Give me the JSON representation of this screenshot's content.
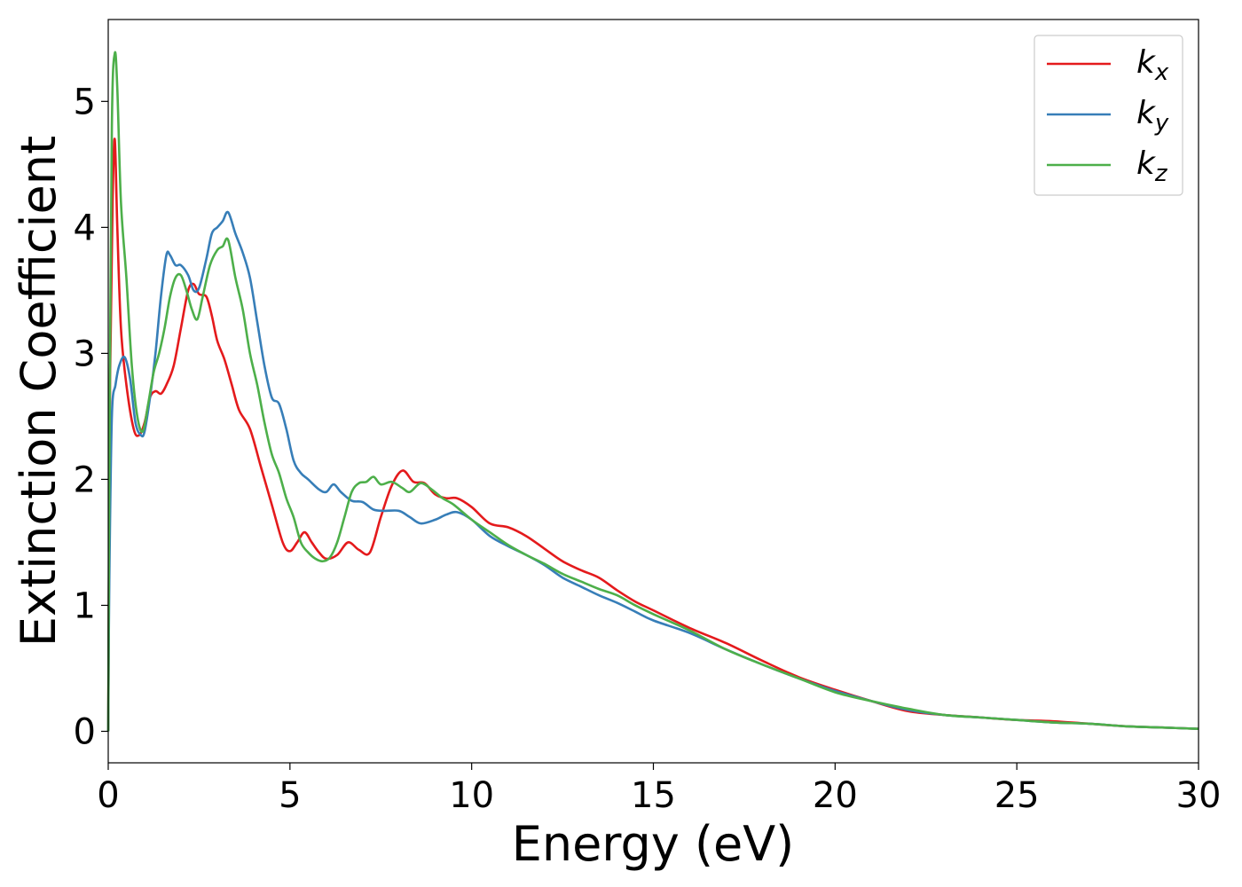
{
  "chart_data": {
    "type": "line",
    "xlabel": "Energy (eV)",
    "ylabel": "Extinction Coefficient",
    "xlim": [
      0,
      30
    ],
    "ylim": [
      -0.25,
      5.65
    ],
    "xticks": [
      0,
      5,
      10,
      15,
      20,
      25,
      30
    ],
    "xtick_labels": [
      "0",
      "5",
      "10",
      "15",
      "20",
      "25",
      "30"
    ],
    "yticks": [
      0,
      1,
      2,
      3,
      4,
      5
    ],
    "ytick_labels": [
      "0",
      "1",
      "2",
      "3",
      "4",
      "5"
    ],
    "grid": false,
    "legend_position": "top-right",
    "series": [
      {
        "name": "k",
        "subscript": "x",
        "color": "#e41a1c",
        "x": [
          0,
          0.05,
          0.12,
          0.18,
          0.25,
          0.35,
          0.5,
          0.7,
          0.85,
          1.0,
          1.15,
          1.3,
          1.45,
          1.6,
          1.8,
          2.0,
          2.2,
          2.35,
          2.5,
          2.7,
          2.85,
          3.0,
          3.2,
          3.4,
          3.6,
          3.9,
          4.2,
          4.5,
          4.8,
          5.0,
          5.2,
          5.4,
          5.6,
          5.8,
          6.0,
          6.3,
          6.6,
          6.9,
          7.2,
          7.5,
          7.8,
          8.1,
          8.4,
          8.7,
          9.0,
          9.3,
          9.6,
          10.0,
          10.5,
          11.0,
          11.5,
          12.0,
          12.5,
          13.0,
          13.5,
          14.0,
          14.5,
          15.0,
          16.0,
          17.0,
          18.0,
          19.0,
          20.0,
          21.0,
          22.0,
          23.0,
          24.0,
          25.0,
          26.0,
          27.0,
          28.0,
          29.0,
          30.0
        ],
        "values": [
          0,
          2.8,
          4.2,
          4.7,
          4.0,
          3.2,
          2.75,
          2.4,
          2.35,
          2.45,
          2.65,
          2.7,
          2.68,
          2.75,
          2.9,
          3.2,
          3.5,
          3.55,
          3.47,
          3.45,
          3.3,
          3.1,
          2.95,
          2.75,
          2.55,
          2.4,
          2.1,
          1.8,
          1.5,
          1.43,
          1.5,
          1.58,
          1.5,
          1.42,
          1.37,
          1.4,
          1.5,
          1.44,
          1.42,
          1.7,
          1.95,
          2.07,
          1.98,
          1.97,
          1.88,
          1.85,
          1.85,
          1.78,
          1.65,
          1.62,
          1.55,
          1.45,
          1.35,
          1.28,
          1.22,
          1.12,
          1.03,
          0.96,
          0.82,
          0.7,
          0.56,
          0.43,
          0.33,
          0.24,
          0.16,
          0.13,
          0.11,
          0.09,
          0.08,
          0.06,
          0.04,
          0.03,
          0.02
        ]
      },
      {
        "name": "k",
        "subscript": "y",
        "color": "#377eb8",
        "x": [
          0,
          0.03,
          0.1,
          0.2,
          0.3,
          0.45,
          0.6,
          0.75,
          0.9,
          1.0,
          1.15,
          1.3,
          1.45,
          1.6,
          1.7,
          1.85,
          2.0,
          2.2,
          2.35,
          2.5,
          2.7,
          2.85,
          3.0,
          3.15,
          3.3,
          3.5,
          3.7,
          3.9,
          4.1,
          4.3,
          4.5,
          4.7,
          4.9,
          5.1,
          5.3,
          5.5,
          5.8,
          6.0,
          6.2,
          6.4,
          6.7,
          7.0,
          7.3,
          7.6,
          8.0,
          8.3,
          8.6,
          9.0,
          9.3,
          9.6,
          10.0,
          10.5,
          11.0,
          11.5,
          12.0,
          12.5,
          13.0,
          13.5,
          14.0,
          14.5,
          15.0,
          16.0,
          17.0,
          18.0,
          19.0,
          20.0,
          21.0,
          22.0,
          23.0,
          24.0,
          25.0,
          26.0,
          27.0,
          28.0,
          29.0,
          30.0
        ],
        "values": [
          0,
          1.2,
          2.5,
          2.75,
          2.9,
          2.97,
          2.8,
          2.45,
          2.35,
          2.38,
          2.65,
          3.0,
          3.45,
          3.78,
          3.78,
          3.7,
          3.7,
          3.62,
          3.5,
          3.52,
          3.75,
          3.95,
          4.0,
          4.05,
          4.12,
          3.95,
          3.8,
          3.6,
          3.25,
          2.9,
          2.65,
          2.6,
          2.4,
          2.15,
          2.05,
          2.0,
          1.92,
          1.9,
          1.96,
          1.9,
          1.83,
          1.82,
          1.76,
          1.75,
          1.75,
          1.7,
          1.65,
          1.68,
          1.72,
          1.74,
          1.68,
          1.55,
          1.47,
          1.4,
          1.32,
          1.22,
          1.15,
          1.08,
          1.02,
          0.95,
          0.88,
          0.78,
          0.65,
          0.53,
          0.42,
          0.32,
          0.24,
          0.17,
          0.13,
          0.11,
          0.09,
          0.07,
          0.06,
          0.04,
          0.03,
          0.02
        ]
      },
      {
        "name": "k",
        "subscript": "z",
        "color": "#4daf4a",
        "x": [
          0,
          0.03,
          0.1,
          0.18,
          0.25,
          0.35,
          0.5,
          0.65,
          0.8,
          0.95,
          1.1,
          1.25,
          1.4,
          1.55,
          1.7,
          1.85,
          2.0,
          2.15,
          2.3,
          2.45,
          2.6,
          2.8,
          3.0,
          3.15,
          3.3,
          3.5,
          3.7,
          3.9,
          4.1,
          4.3,
          4.5,
          4.7,
          4.9,
          5.1,
          5.3,
          5.5,
          5.7,
          5.9,
          6.1,
          6.3,
          6.5,
          6.7,
          6.9,
          7.1,
          7.3,
          7.5,
          7.8,
          8.1,
          8.3,
          8.6,
          8.9,
          9.2,
          9.5,
          10.0,
          10.5,
          11.0,
          11.5,
          12.0,
          12.5,
          13.0,
          13.5,
          14.0,
          14.5,
          15.0,
          16.0,
          17.0,
          18.0,
          19.0,
          20.0,
          21.0,
          22.0,
          23.0,
          24.0,
          25.0,
          26.0,
          27.0,
          28.0,
          29.0,
          30.0
        ],
        "values": [
          0,
          2.0,
          4.8,
          5.38,
          5.1,
          4.2,
          3.6,
          2.9,
          2.5,
          2.38,
          2.6,
          2.85,
          3.0,
          3.2,
          3.45,
          3.6,
          3.62,
          3.5,
          3.35,
          3.27,
          3.45,
          3.7,
          3.82,
          3.85,
          3.9,
          3.6,
          3.35,
          3.0,
          2.75,
          2.45,
          2.2,
          2.05,
          1.85,
          1.7,
          1.5,
          1.42,
          1.37,
          1.35,
          1.38,
          1.5,
          1.7,
          1.9,
          1.97,
          1.98,
          2.02,
          1.96,
          1.98,
          1.93,
          1.9,
          1.97,
          1.92,
          1.85,
          1.8,
          1.68,
          1.58,
          1.48,
          1.4,
          1.33,
          1.25,
          1.19,
          1.13,
          1.08,
          1.0,
          0.93,
          0.8,
          0.65,
          0.53,
          0.42,
          0.31,
          0.24,
          0.18,
          0.13,
          0.11,
          0.09,
          0.07,
          0.06,
          0.04,
          0.03,
          0.02
        ]
      }
    ]
  }
}
